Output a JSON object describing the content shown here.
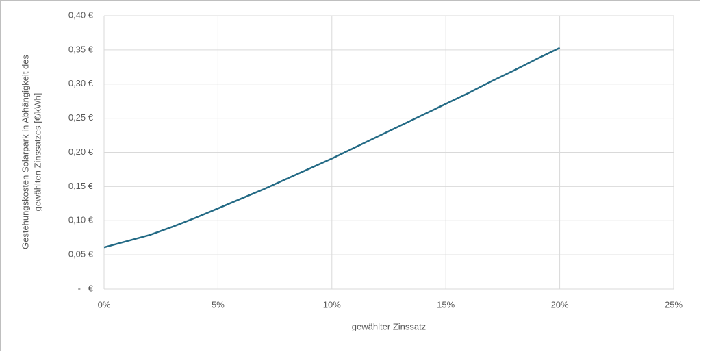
{
  "chart_data": {
    "type": "line",
    "xlabel": "gewählter Zinssatz",
    "ylabel": [
      "Gestehungskosten Solarpark in Abhängigkeit des",
      "gewählten Zinssatzes [€/kWh]"
    ],
    "x": [
      0,
      1,
      2,
      3,
      4,
      5,
      6,
      7,
      8,
      9,
      10,
      11,
      12,
      13,
      14,
      15,
      16,
      17,
      18,
      19,
      20
    ],
    "series": [
      {
        "color": "#236a85",
        "values": [
          0.061,
          0.07,
          0.079,
          0.091,
          0.104,
          0.118,
          0.132,
          0.146,
          0.161,
          0.176,
          0.191,
          0.207,
          0.223,
          0.239,
          0.255,
          0.271,
          0.287,
          0.304,
          0.32,
          0.337,
          0.353
        ]
      }
    ],
    "xlim": [
      0,
      25
    ],
    "xticks": [
      {
        "value": 0,
        "label": "0%"
      },
      {
        "value": 5,
        "label": "5%"
      },
      {
        "value": 10,
        "label": "10%"
      },
      {
        "value": 15,
        "label": "15%"
      },
      {
        "value": 20,
        "label": "20%"
      },
      {
        "value": 25,
        "label": "25%"
      }
    ],
    "ylim": [
      0,
      0.4
    ],
    "yticks": [
      {
        "value": 0,
        "label": "-   €"
      },
      {
        "value": 0.05,
        "label": "0,05 €"
      },
      {
        "value": 0.1,
        "label": "0,10 €"
      },
      {
        "value": 0.15,
        "label": "0,15 €"
      },
      {
        "value": 0.2,
        "label": "0,20 €"
      },
      {
        "value": 0.25,
        "label": "0,25 €"
      },
      {
        "value": 0.3,
        "label": "0,30 €"
      },
      {
        "value": 0.35,
        "label": "0,35 €"
      },
      {
        "value": 0.4,
        "label": "0,40 €"
      }
    ],
    "grid": true
  }
}
